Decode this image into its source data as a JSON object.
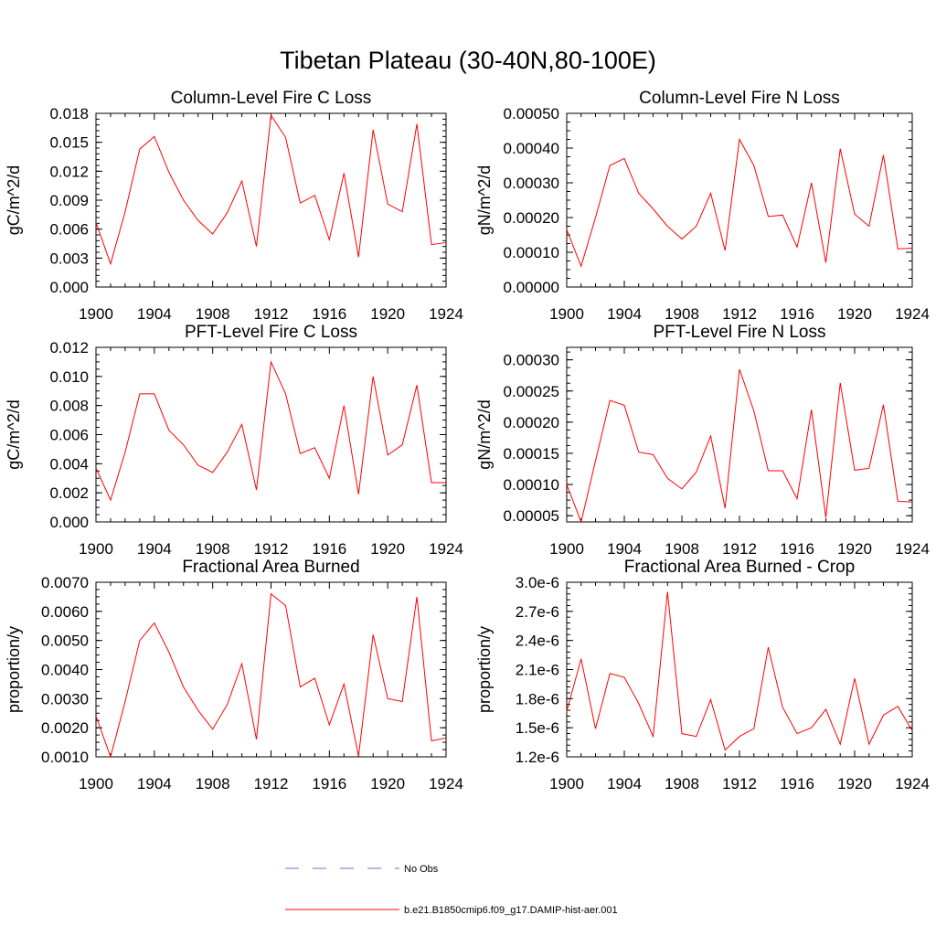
{
  "figure": {
    "title": "Tibetan Plateau (30-40N,80-100E)"
  },
  "legend": {
    "entries": [
      {
        "label": "No Obs",
        "color": "#6b6fd0",
        "style": "dashed"
      },
      {
        "label": "b.e21.B1850cmip6.f09_g17.DAMIP-hist-aer.001",
        "color": "#ff0000",
        "style": "solid"
      }
    ]
  },
  "chart_data": [
    {
      "type": "line",
      "title": "Column-Level Fire C Loss",
      "xlabel": "",
      "ylabel": "gC/m^2/d",
      "xlim": [
        1900,
        1924
      ],
      "ylim": [
        0,
        0.018
      ],
      "xticks": [
        1900,
        1904,
        1908,
        1912,
        1916,
        1920,
        1924
      ],
      "yticks": [
        "0.000",
        "0.003",
        "0.006",
        "0.009",
        "0.012",
        "0.015",
        "0.018"
      ],
      "ytick_values": [
        0,
        0.003,
        0.006,
        0.009,
        0.012,
        0.015,
        0.018
      ],
      "yminor": 5,
      "x": [
        1900,
        1901,
        1902,
        1903,
        1904,
        1905,
        1906,
        1907,
        1908,
        1909,
        1910,
        1911,
        1912,
        1913,
        1914,
        1915,
        1916,
        1917,
        1918,
        1919,
        1920,
        1921,
        1922,
        1923,
        1924
      ],
      "series": [
        {
          "color": "#ff0000",
          "values": [
            0.0067,
            0.0024,
            0.0078,
            0.0143,
            0.0156,
            0.0119,
            0.009,
            0.0069,
            0.0055,
            0.0077,
            0.011,
            0.0042,
            0.0178,
            0.0155,
            0.0087,
            0.0095,
            0.0049,
            0.0118,
            0.0031,
            0.0163,
            0.0086,
            0.0078,
            0.0169,
            0.0044,
            0.0046
          ]
        }
      ]
    },
    {
      "type": "line",
      "title": "Column-Level Fire N Loss",
      "xlabel": "",
      "ylabel": "gN/m^2/d",
      "xlim": [
        1900,
        1924
      ],
      "ylim": [
        0,
        0.0005
      ],
      "xticks": [
        1900,
        1904,
        1908,
        1912,
        1916,
        1920,
        1924
      ],
      "yticks": [
        "0.00000",
        "0.00010",
        "0.00020",
        "0.00030",
        "0.00040",
        "0.00050"
      ],
      "ytick_values": [
        0,
        0.0001,
        0.0002,
        0.0003,
        0.0004,
        0.0005
      ],
      "yminor": 4,
      "x": [
        1900,
        1901,
        1902,
        1903,
        1904,
        1905,
        1906,
        1907,
        1908,
        1909,
        1910,
        1911,
        1912,
        1913,
        1914,
        1915,
        1916,
        1917,
        1918,
        1919,
        1920,
        1921,
        1922,
        1923,
        1924
      ],
      "series": [
        {
          "color": "#ff0000",
          "values": [
            0.000165,
            6e-05,
            0.0002,
            0.00035,
            0.00037,
            0.00027,
            0.000225,
            0.000175,
            0.000138,
            0.000175,
            0.00027,
            0.000105,
            0.000425,
            0.00035,
            0.000203,
            0.000207,
            0.000115,
            0.0003,
            7e-05,
            0.000398,
            0.00021,
            0.000175,
            0.00038,
            0.00011,
            0.000112
          ]
        }
      ]
    },
    {
      "type": "line",
      "title": "PFT-Level Fire C Loss",
      "xlabel": "",
      "ylabel": "gC/m^2/d",
      "xlim": [
        1900,
        1924
      ],
      "ylim": [
        0,
        0.012
      ],
      "xticks": [
        1900,
        1904,
        1908,
        1912,
        1916,
        1920,
        1924
      ],
      "yticks": [
        "0.000",
        "0.002",
        "0.004",
        "0.006",
        "0.008",
        "0.010",
        "0.012"
      ],
      "ytick_values": [
        0,
        0.002,
        0.004,
        0.006,
        0.008,
        0.01,
        0.012
      ],
      "yminor": 4,
      "x": [
        1900,
        1901,
        1902,
        1903,
        1904,
        1905,
        1906,
        1907,
        1908,
        1909,
        1910,
        1911,
        1912,
        1913,
        1914,
        1915,
        1916,
        1917,
        1918,
        1919,
        1920,
        1921,
        1922,
        1923,
        1924
      ],
      "series": [
        {
          "color": "#ff0000",
          "values": [
            0.0037,
            0.0015,
            0.0048,
            0.0088,
            0.0088,
            0.0063,
            0.0053,
            0.0039,
            0.0034,
            0.0048,
            0.0067,
            0.0022,
            0.011,
            0.0088,
            0.0047,
            0.0051,
            0.003,
            0.008,
            0.0019,
            0.01,
            0.0046,
            0.0053,
            0.0094,
            0.0027,
            0.0027
          ]
        }
      ]
    },
    {
      "type": "line",
      "title": "PFT-Level Fire N Loss",
      "xlabel": "",
      "ylabel": "gN/m^2/d",
      "xlim": [
        1900,
        1924
      ],
      "ylim": [
        4e-05,
        0.00032
      ],
      "xticks": [
        1900,
        1904,
        1908,
        1912,
        1916,
        1920,
        1924
      ],
      "yticks": [
        "0.00005",
        "0.00010",
        "0.00015",
        "0.00020",
        "0.00025",
        "0.00030"
      ],
      "ytick_values": [
        5e-05,
        0.0001,
        0.00015,
        0.0002,
        0.00025,
        0.0003
      ],
      "yminor": 4,
      "x": [
        1900,
        1901,
        1902,
        1903,
        1904,
        1905,
        1906,
        1907,
        1908,
        1909,
        1910,
        1911,
        1912,
        1913,
        1914,
        1915,
        1916,
        1917,
        1918,
        1919,
        1920,
        1921,
        1922,
        1923,
        1924
      ],
      "series": [
        {
          "color": "#ff0000",
          "values": [
            0.0001,
            4e-05,
            0.000138,
            0.000235,
            0.000227,
            0.000152,
            0.000148,
            0.00011,
            9.3e-05,
            0.00012,
            0.000178,
            6.2e-05,
            0.000285,
            0.000218,
            0.000122,
            0.000122,
            7.7e-05,
            0.00022,
            4.7e-05,
            0.000263,
            0.000123,
            0.000126,
            0.000228,
            7.3e-05,
            7.2e-05
          ]
        }
      ]
    },
    {
      "type": "line",
      "title": "Fractional Area Burned",
      "xlabel": "",
      "ylabel": "proportion/y",
      "xlim": [
        1900,
        1924
      ],
      "ylim": [
        0.001,
        0.007
      ],
      "xticks": [
        1900,
        1904,
        1908,
        1912,
        1916,
        1920,
        1924
      ],
      "yticks": [
        "0.0010",
        "0.0020",
        "0.0030",
        "0.0040",
        "0.0050",
        "0.0060",
        "0.0070"
      ],
      "ytick_values": [
        0.001,
        0.002,
        0.003,
        0.004,
        0.005,
        0.006,
        0.007
      ],
      "yminor": 4,
      "x": [
        1900,
        1901,
        1902,
        1903,
        1904,
        1905,
        1906,
        1907,
        1908,
        1909,
        1910,
        1911,
        1912,
        1913,
        1914,
        1915,
        1916,
        1917,
        1918,
        1919,
        1920,
        1921,
        1922,
        1923,
        1924
      ],
      "series": [
        {
          "color": "#ff0000",
          "values": [
            0.0024,
            0.001,
            0.0029,
            0.005,
            0.0056,
            0.0046,
            0.0034,
            0.0026,
            0.00195,
            0.0028,
            0.0042,
            0.0016,
            0.0066,
            0.0062,
            0.0034,
            0.0037,
            0.0021,
            0.0035,
            0.00102,
            0.0052,
            0.003,
            0.0029,
            0.0065,
            0.00155,
            0.00165
          ]
        }
      ]
    },
    {
      "type": "line",
      "title": "Fractional Area Burned - Crop",
      "xlabel": "",
      "ylabel": "proportion/y",
      "xlim": [
        1900,
        1924
      ],
      "ylim": [
        1.2e-06,
        3e-06
      ],
      "xticks": [
        1900,
        1904,
        1908,
        1912,
        1916,
        1920,
        1924
      ],
      "yticks": [
        "1.2e-6",
        "1.5e-6",
        "1.8e-6",
        "2.1e-6",
        "2.4e-6",
        "2.7e-6",
        "3.0e-6"
      ],
      "ytick_values": [
        1.2e-06,
        1.5e-06,
        1.8e-06,
        2.1e-06,
        2.4e-06,
        2.7e-06,
        3e-06
      ],
      "yminor": 5,
      "x": [
        1900,
        1901,
        1902,
        1903,
        1904,
        1905,
        1906,
        1907,
        1908,
        1909,
        1910,
        1911,
        1912,
        1913,
        1914,
        1915,
        1916,
        1917,
        1918,
        1919,
        1920,
        1921,
        1922,
        1923,
        1924
      ],
      "series": [
        {
          "color": "#ff0000",
          "values": [
            1.67e-06,
            2.21e-06,
            1.49e-06,
            2.06e-06,
            2.02e-06,
            1.75e-06,
            1.41e-06,
            2.9e-06,
            1.44e-06,
            1.41e-06,
            1.79e-06,
            1.27e-06,
            1.41e-06,
            1.49e-06,
            2.33e-06,
            1.71e-06,
            1.44e-06,
            1.5e-06,
            1.69e-06,
            1.33e-06,
            2.01e-06,
            1.33e-06,
            1.63e-06,
            1.72e-06,
            1.47e-06
          ]
        }
      ]
    }
  ]
}
